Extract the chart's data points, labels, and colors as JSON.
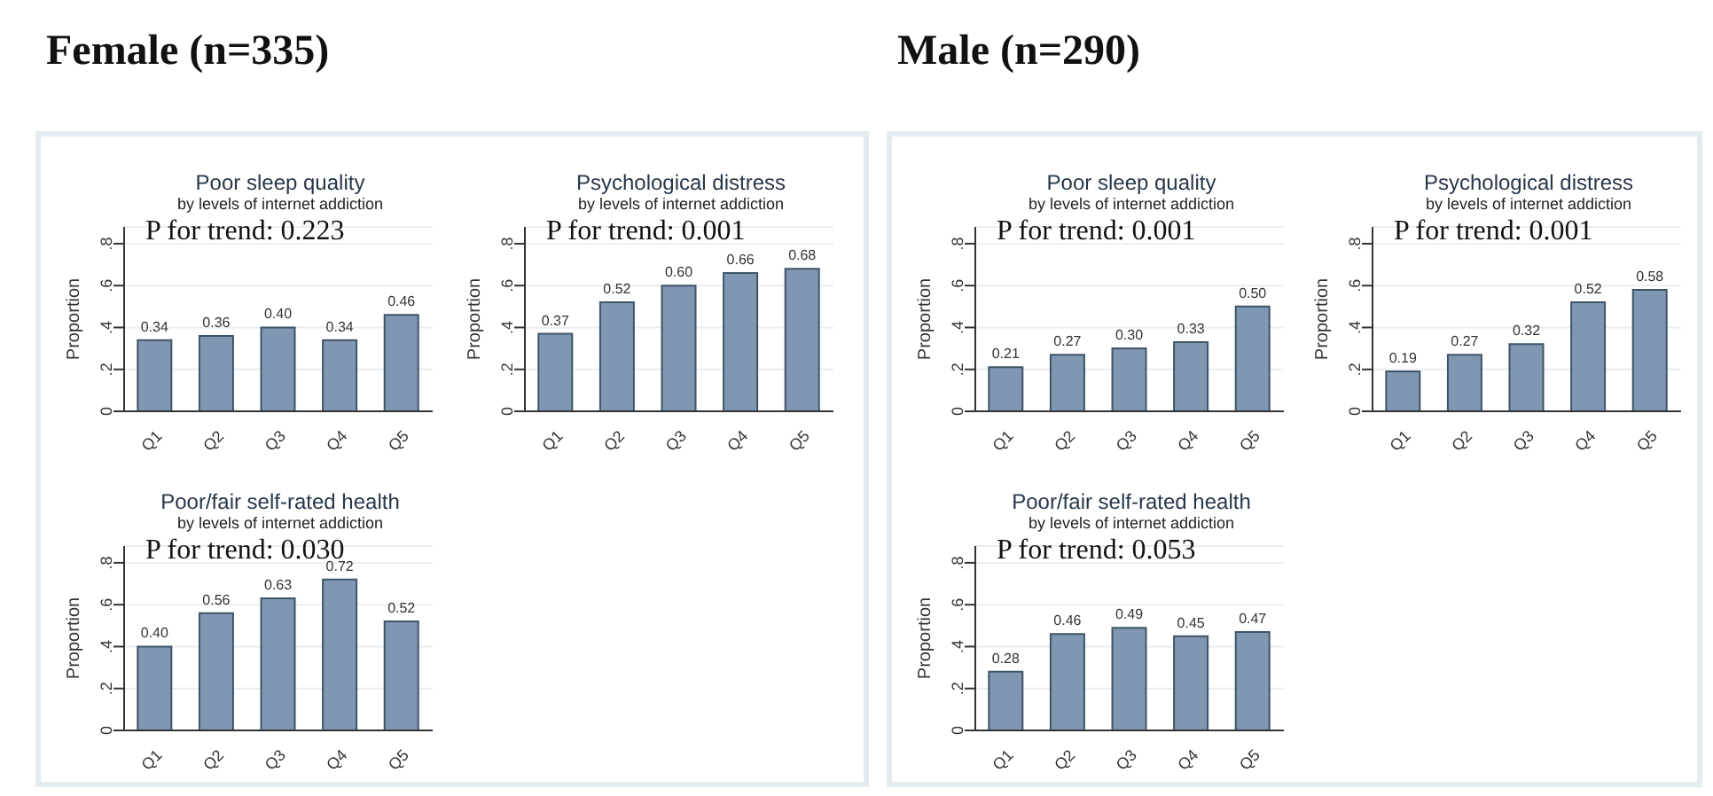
{
  "chart_data": [
    {
      "type": "bar",
      "title": "Poor sleep quality",
      "subtitle": "by levels of internet addiction",
      "ylabel": "Proportion",
      "annotations": [
        "Female (n=335)",
        "P for trend: 0.223"
      ],
      "categories": [
        "Q1",
        "Q2",
        "Q3",
        "Q4",
        "Q5"
      ],
      "values": [
        0.34,
        0.36,
        0.4,
        0.34,
        0.46
      ],
      "value_labels": [
        "0.34",
        "0.36",
        "0.40",
        "0.34",
        "0.46"
      ],
      "color": "#7f97b2",
      "ylim": [
        0,
        0.88
      ],
      "yticks": [
        {
          "value": 0,
          "label": "0"
        },
        {
          "value": 0.2,
          "label": ".2"
        },
        {
          "value": 0.4,
          "label": ".4"
        },
        {
          "value": 0.6,
          "label": ".6"
        },
        {
          "value": 0.8,
          "label": ".8"
        }
      ],
      "grid": "y"
    },
    {
      "type": "bar",
      "title": "Psychological distress",
      "subtitle": "by levels of internet addiction",
      "ylabel": "Proportion",
      "annotations": [
        "P for trend: 0.001"
      ],
      "categories": [
        "Q1",
        "Q2",
        "Q3",
        "Q4",
        "Q5"
      ],
      "values": [
        0.37,
        0.52,
        0.6,
        0.66,
        0.68
      ],
      "value_labels": [
        "0.37",
        "0.52",
        "0.60",
        "0.66",
        "0.68"
      ],
      "color": "#7f97b2",
      "ylim": [
        0,
        0.88
      ],
      "yticks": [
        {
          "value": 0,
          "label": "0"
        },
        {
          "value": 0.2,
          "label": ".2"
        },
        {
          "value": 0.4,
          "label": ".4"
        },
        {
          "value": 0.6,
          "label": ".6"
        },
        {
          "value": 0.8,
          "label": ".8"
        }
      ],
      "grid": "y"
    },
    {
      "type": "bar",
      "title": "Poor/fair self-rated health",
      "subtitle": "by levels of internet addiction",
      "ylabel": "Proportion",
      "annotations": [
        "P for trend: 0.030"
      ],
      "categories": [
        "Q1",
        "Q2",
        "Q3",
        "Q4",
        "Q5"
      ],
      "values": [
        0.4,
        0.56,
        0.63,
        0.72,
        0.52
      ],
      "value_labels": [
        "0.40",
        "0.56",
        "0.63",
        "0.72",
        "0.52"
      ],
      "color": "#7f97b2",
      "ylim": [
        0,
        0.88
      ],
      "yticks": [
        {
          "value": 0,
          "label": "0"
        },
        {
          "value": 0.2,
          "label": ".2"
        },
        {
          "value": 0.4,
          "label": ".4"
        },
        {
          "value": 0.6,
          "label": ".6"
        },
        {
          "value": 0.8,
          "label": ".8"
        }
      ],
      "grid": "y"
    },
    {
      "type": "bar",
      "title": "Poor sleep quality",
      "subtitle": "by levels of internet addiction",
      "ylabel": "Proportion",
      "annotations": [
        "Male (n=290)",
        "P for trend: 0.001"
      ],
      "categories": [
        "Q1",
        "Q2",
        "Q3",
        "Q4",
        "Q5"
      ],
      "values": [
        0.21,
        0.27,
        0.3,
        0.33,
        0.5
      ],
      "value_labels": [
        "0.21",
        "0.27",
        "0.30",
        "0.33",
        "0.50"
      ],
      "color": "#7f97b2",
      "ylim": [
        0,
        0.88
      ],
      "yticks": [
        {
          "value": 0,
          "label": "0"
        },
        {
          "value": 0.2,
          "label": ".2"
        },
        {
          "value": 0.4,
          "label": ".4"
        },
        {
          "value": 0.6,
          "label": ".6"
        },
        {
          "value": 0.8,
          "label": ".8"
        }
      ],
      "grid": "y"
    },
    {
      "type": "bar",
      "title": "Psychological distress",
      "subtitle": "by levels of internet addiction",
      "ylabel": "Proportion",
      "annotations": [
        "P for trend: 0.001"
      ],
      "categories": [
        "Q1",
        "Q2",
        "Q3",
        "Q4",
        "Q5"
      ],
      "values": [
        0.19,
        0.27,
        0.32,
        0.52,
        0.58
      ],
      "value_labels": [
        "0.19",
        "0.27",
        "0.32",
        "0.52",
        "0.58"
      ],
      "color": "#7f97b2",
      "ylim": [
        0,
        0.88
      ],
      "yticks": [
        {
          "value": 0,
          "label": "0"
        },
        {
          "value": 0.2,
          "label": ".2"
        },
        {
          "value": 0.4,
          "label": ".4"
        },
        {
          "value": 0.6,
          "label": ".6"
        },
        {
          "value": 0.8,
          "label": ".8"
        }
      ],
      "grid": "y"
    },
    {
      "type": "bar",
      "title": "Poor/fair self-rated health",
      "subtitle": "by levels of internet addiction",
      "ylabel": "Proportion",
      "annotations": [
        "P for trend: 0.053"
      ],
      "categories": [
        "Q1",
        "Q2",
        "Q3",
        "Q4",
        "Q5"
      ],
      "values": [
        0.28,
        0.46,
        0.49,
        0.45,
        0.47
      ],
      "value_labels": [
        "0.28",
        "0.46",
        "0.49",
        "0.45",
        "0.47"
      ],
      "color": "#7f97b2",
      "ylim": [
        0,
        0.88
      ],
      "yticks": [
        {
          "value": 0,
          "label": "0"
        },
        {
          "value": 0.2,
          "label": ".2"
        },
        {
          "value": 0.4,
          "label": ".4"
        },
        {
          "value": 0.6,
          "label": ".6"
        },
        {
          "value": 0.8,
          "label": ".8"
        }
      ],
      "grid": "y"
    }
  ]
}
